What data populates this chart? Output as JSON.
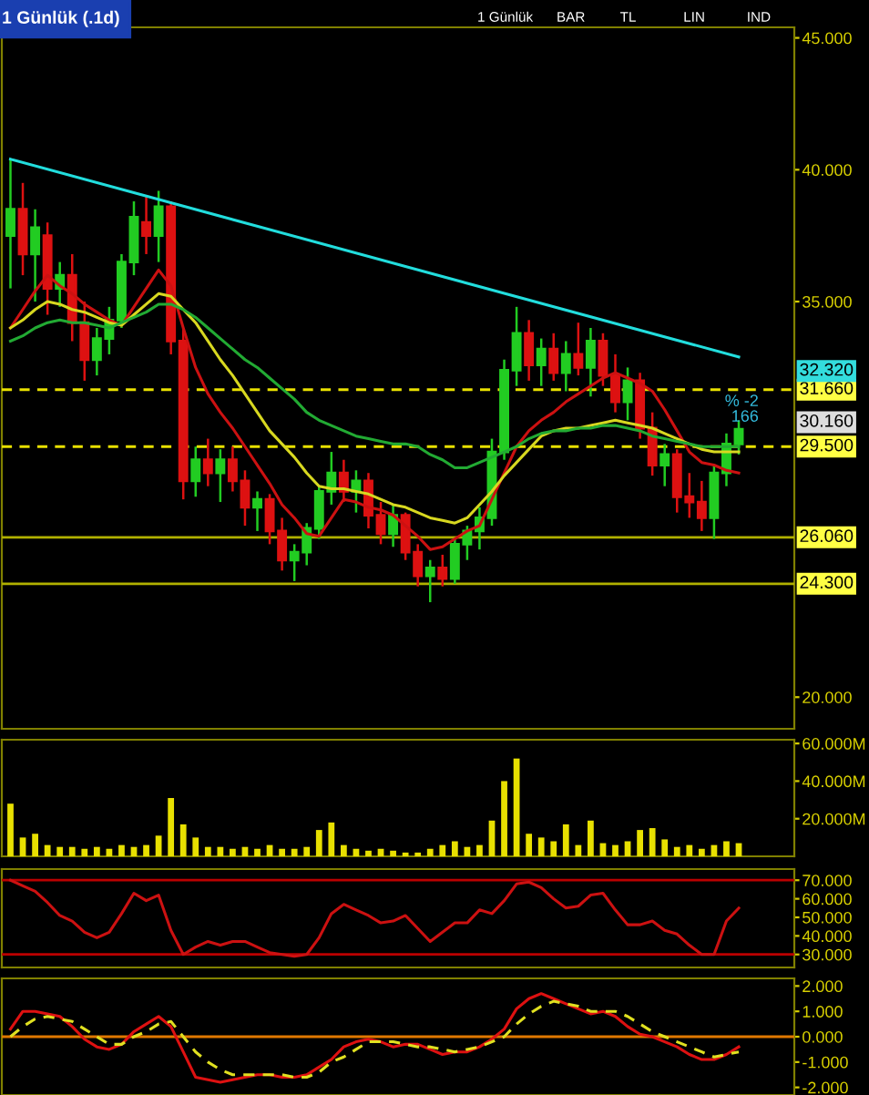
{
  "chart_data": [
    {
      "type": "candlestick",
      "title": "1 Günlük (.1d)",
      "annotations": [
        "1 Günlük",
        "BAR",
        "TL",
        "LIN",
        "IND",
        "% -2",
        "166",
        "32.320",
        "30.160"
      ],
      "categories": [
        null,
        null,
        null,
        null,
        null,
        null,
        null,
        null,
        null,
        null,
        null,
        null,
        null,
        null,
        null,
        null,
        null,
        null,
        null,
        null,
        null,
        null,
        null,
        null,
        null,
        null,
        null,
        null,
        null,
        null,
        null,
        null,
        null,
        null,
        null,
        null,
        null,
        null,
        null,
        null,
        null,
        null,
        null,
        null,
        null,
        null,
        null,
        null,
        null,
        null,
        null,
        null,
        null,
        null,
        null,
        null,
        null,
        null,
        null,
        null
      ],
      "ohlc": [
        [
          37.5,
          40.4,
          35.5,
          38.5
        ],
        [
          38.5,
          39.5,
          36,
          36.8
        ],
        [
          36.8,
          38.5,
          35,
          37.8
        ],
        [
          37.5,
          38,
          34.5,
          35.5
        ],
        [
          35.5,
          36.5,
          34.8,
          36
        ],
        [
          36,
          36.8,
          33.5,
          34.2
        ],
        [
          34.2,
          35,
          32,
          32.8
        ],
        [
          32.8,
          34,
          32.2,
          33.6
        ],
        [
          33.6,
          34.8,
          33,
          34.3
        ],
        [
          34.3,
          36.8,
          34,
          36.5
        ],
        [
          36.5,
          38.8,
          36,
          38.2
        ],
        [
          38,
          39,
          36.8,
          37.5
        ],
        [
          37.5,
          39.2,
          36.5,
          38.6
        ],
        [
          38.6,
          38.8,
          33,
          33.5
        ],
        [
          33.5,
          34,
          27.5,
          28.2
        ],
        [
          28.2,
          29.5,
          27.6,
          29
        ],
        [
          29,
          29.8,
          28,
          28.5
        ],
        [
          28.5,
          29.4,
          27.4,
          29
        ],
        [
          29,
          29.5,
          27.8,
          28.2
        ],
        [
          28.2,
          28.6,
          26.5,
          27.2
        ],
        [
          27.2,
          27.8,
          26.3,
          27.5
        ],
        [
          27.5,
          27.7,
          25.8,
          26.3
        ],
        [
          26.3,
          26.8,
          24.8,
          25.2
        ],
        [
          25.2,
          25.8,
          24.4,
          25.5
        ],
        [
          25.5,
          26.6,
          25,
          26.4
        ],
        [
          26.4,
          28,
          26,
          27.8
        ],
        [
          27.8,
          29.3,
          27.3,
          28.5
        ],
        [
          28.5,
          29,
          27.4,
          27.8
        ],
        [
          27.8,
          28.6,
          27,
          28.2
        ],
        [
          28.2,
          28.5,
          26.4,
          26.9
        ],
        [
          26.9,
          27.4,
          25.8,
          26.2
        ],
        [
          26.2,
          27.3,
          25.7,
          26.9
        ],
        [
          26.9,
          27,
          25.2,
          25.5
        ],
        [
          25.5,
          25.8,
          24.2,
          24.6
        ],
        [
          24.6,
          25.2,
          23.6,
          24.9
        ],
        [
          24.9,
          25.4,
          24.2,
          24.5
        ],
        [
          24.5,
          26,
          24.3,
          25.8
        ],
        [
          25.8,
          26.5,
          25.2,
          26.3
        ],
        [
          26.3,
          27.2,
          25.6,
          26.8
        ],
        [
          26.8,
          29.8,
          26.5,
          29.3
        ],
        [
          29.3,
          32.8,
          29,
          32.4
        ],
        [
          32.4,
          34.8,
          31.8,
          33.8
        ],
        [
          33.8,
          34.3,
          32,
          32.6
        ],
        [
          32.6,
          33.6,
          31.8,
          33.2
        ],
        [
          33.2,
          33.8,
          32,
          32.3
        ],
        [
          32.3,
          33.5,
          31.6,
          33
        ],
        [
          33,
          34.2,
          32.2,
          32.5
        ],
        [
          32.5,
          34,
          31.4,
          33.5
        ],
        [
          33.5,
          33.8,
          31.8,
          32.2
        ],
        [
          32.2,
          33,
          30.8,
          31.2
        ],
        [
          31.2,
          32.5,
          30.5,
          32
        ],
        [
          32,
          32.3,
          29.8,
          30.2
        ],
        [
          30.2,
          30.8,
          28.4,
          28.8
        ],
        [
          28.8,
          29.6,
          28,
          29.2
        ],
        [
          29.2,
          29.4,
          27,
          27.6
        ],
        [
          27.6,
          28.5,
          26.8,
          27.4
        ],
        [
          27.4,
          28.2,
          26.3,
          26.8
        ],
        [
          26.8,
          28.8,
          26,
          28.5
        ],
        [
          28.5,
          30,
          28,
          29.6
        ],
        [
          29.6,
          30.5,
          29.2,
          30.16
        ]
      ],
      "colors": [
        "#22cc22",
        "#dd1111",
        "#22cc22",
        "#dd1111",
        "#22cc22",
        "#dd1111",
        "#dd1111",
        "#22cc22",
        "#22cc22",
        "#22cc22",
        "#22cc22",
        "#dd1111",
        "#22cc22",
        "#dd1111",
        "#dd1111",
        "#22cc22",
        "#dd1111",
        "#22cc22",
        "#dd1111",
        "#dd1111",
        "#22cc22",
        "#dd1111",
        "#dd1111",
        "#22cc22",
        "#22cc22",
        "#22cc22",
        "#22cc22",
        "#dd1111",
        "#22cc22",
        "#dd1111",
        "#dd1111",
        "#22cc22",
        "#dd1111",
        "#dd1111",
        "#22cc22",
        "#dd1111",
        "#22cc22",
        "#22cc22",
        "#22cc22",
        "#22cc22",
        "#22cc22",
        "#22cc22",
        "#dd1111",
        "#22cc22",
        "#dd1111",
        "#22cc22",
        "#dd1111",
        "#22cc22",
        "#dd1111",
        "#dd1111",
        "#22cc22",
        "#dd1111",
        "#dd1111",
        "#22cc22",
        "#dd1111",
        "#dd1111",
        "#dd1111",
        "#22cc22",
        "#22cc22",
        "#22cc22"
      ],
      "series": [
        {
          "type": "line",
          "color": "#cc1111",
          "values": [
            34,
            34.7,
            35.4,
            36,
            35.6,
            35.3,
            34.9,
            34.6,
            34.3,
            34.1,
            34.8,
            35.5,
            36.2,
            35.6,
            34,
            32.5,
            31.5,
            30.8,
            30.2,
            29.5,
            28.8,
            28.1,
            27.3,
            26.8,
            26.2,
            26.1,
            26.8,
            27.5,
            27.4,
            27.2,
            27.1,
            26.9,
            26.5,
            26.1,
            25.6,
            25.7,
            26,
            26.3,
            26.5,
            27.5,
            28.5,
            29.5,
            30.1,
            30.5,
            30.8,
            31.2,
            31.5,
            31.8,
            32.1,
            32.3,
            32.1,
            31.9,
            31.6,
            30.9,
            30.1,
            29.3,
            28.9,
            28.8,
            28.6,
            28.5
          ]
        },
        {
          "type": "line",
          "color": "#d8d820",
          "values": [
            34,
            34.3,
            34.7,
            35,
            34.9,
            34.7,
            34.6,
            34.4,
            34.2,
            34.1,
            34.5,
            34.9,
            35.3,
            35.2,
            34.7,
            34.2,
            33.5,
            32.8,
            32.2,
            31.5,
            30.8,
            30.1,
            29.6,
            29.1,
            28.5,
            28,
            27.9,
            27.9,
            27.8,
            27.7,
            27.5,
            27.3,
            27.2,
            27,
            26.8,
            26.7,
            26.6,
            26.8,
            27.3,
            27.8,
            28.4,
            28.9,
            29.4,
            29.9,
            30.1,
            30.2,
            30.2,
            30.3,
            30.4,
            30.5,
            30.4,
            30.3,
            30.2,
            30,
            29.8,
            29.6,
            29.4,
            29.3,
            29.3,
            29.3
          ]
        },
        {
          "type": "line",
          "color": "#22aa33",
          "values": [
            33.5,
            33.7,
            34,
            34.2,
            34.3,
            34.2,
            34.2,
            34.1,
            34,
            34.2,
            34.4,
            34.6,
            34.9,
            34.9,
            34.7,
            34.4,
            34,
            33.6,
            33.2,
            32.8,
            32.5,
            32.1,
            31.7,
            31.3,
            30.8,
            30.5,
            30.3,
            30.1,
            29.9,
            29.8,
            29.7,
            29.6,
            29.6,
            29.5,
            29.2,
            29,
            28.7,
            28.7,
            28.9,
            29.1,
            29.3,
            29.5,
            29.8,
            30,
            30.1,
            30.1,
            30.2,
            30.2,
            30.3,
            30.3,
            30.2,
            30.1,
            29.9,
            29.8,
            29.7,
            29.6,
            29.5,
            29.5,
            29.5,
            29.5
          ]
        },
        {
          "type": "line",
          "color": "#22dddd",
          "values": [
            40.4,
            null,
            null,
            null,
            null,
            null,
            null,
            null,
            null,
            null,
            null,
            null,
            null,
            null,
            null,
            null,
            null,
            null,
            null,
            null,
            null,
            null,
            null,
            null,
            null,
            null,
            null,
            null,
            null,
            null,
            null,
            null,
            null,
            null,
            null,
            null,
            null,
            null,
            null,
            null,
            null,
            null,
            null,
            null,
            null,
            null,
            null,
            null,
            null,
            null,
            null,
            null,
            null,
            null,
            null,
            null,
            null,
            null,
            null,
            32.9
          ]
        }
      ],
      "ref_lines": [
        {
          "axis": "y",
          "value": 31.66,
          "label": "31.660",
          "color": "#e8e000",
          "line_style": "dashed"
        },
        {
          "axis": "y",
          "value": 29.5,
          "label": "29.500",
          "color": "#e8e000",
          "line_style": "dashed"
        },
        {
          "axis": "y",
          "value": 26.06,
          "label": "26.060",
          "color": "#b0b000",
          "line_style": "solid"
        },
        {
          "axis": "y",
          "value": 24.3,
          "label": "24.300",
          "color": "#b0b000",
          "line_style": "solid"
        }
      ],
      "ylim": [
        18.8,
        45.4
      ],
      "yticks": [
        {
          "value": 20,
          "label": "20.000"
        },
        {
          "value": 35,
          "label": "35.000"
        },
        {
          "value": 40,
          "label": "40.000"
        },
        {
          "value": 45,
          "label": "45.000"
        }
      ],
      "tick_labels": "y",
      "grid": false,
      "legend": false
    },
    {
      "type": "bar",
      "categories": [
        null,
        null,
        null,
        null,
        null,
        null,
        null,
        null,
        null,
        null,
        null,
        null,
        null,
        null,
        null,
        null,
        null,
        null,
        null,
        null,
        null,
        null,
        null,
        null,
        null,
        null,
        null,
        null,
        null,
        null,
        null,
        null,
        null,
        null,
        null,
        null,
        null,
        null,
        null,
        null,
        null,
        null,
        null,
        null,
        null,
        null,
        null,
        null,
        null,
        null,
        null,
        null,
        null,
        null,
        null,
        null,
        null,
        null,
        null,
        null
      ],
      "series": [
        {
          "color": "#e8e000",
          "values": [
            28,
            10,
            12,
            6,
            5,
            5,
            4,
            5,
            4,
            6,
            5,
            6,
            11,
            31,
            17,
            10,
            5,
            5,
            4,
            5,
            4,
            6,
            4,
            4,
            5,
            14,
            18,
            6,
            4,
            3,
            4,
            3,
            2,
            2,
            4,
            6,
            8,
            5,
            6,
            19,
            40,
            52,
            12,
            10,
            8,
            17,
            6,
            19,
            7,
            6,
            8,
            14,
            15,
            9,
            5,
            6,
            4,
            6,
            8,
            7
          ]
        }
      ],
      "ylim": [
        0,
        62
      ],
      "yticks": [
        {
          "value": 20,
          "label": "20.000M"
        },
        {
          "value": 40,
          "label": "40.000M"
        },
        {
          "value": 60,
          "label": "60.000M"
        }
      ],
      "tick_labels": "y",
      "grid": false,
      "legend": false
    },
    {
      "type": "line",
      "categories": [
        null,
        null,
        null,
        null,
        null,
        null,
        null,
        null,
        null,
        null,
        null,
        null,
        null,
        null,
        null,
        null,
        null,
        null,
        null,
        null,
        null,
        null,
        null,
        null,
        null,
        null,
        null,
        null,
        null,
        null,
        null,
        null,
        null,
        null,
        null,
        null,
        null,
        null,
        null,
        null,
        null,
        null,
        null,
        null,
        null,
        null,
        null,
        null,
        null,
        null,
        null,
        null,
        null,
        null,
        null,
        null,
        null,
        null,
        null,
        null
      ],
      "series": [
        {
          "color": "#cc1111",
          "values": [
            70,
            67,
            64,
            58,
            51,
            48,
            42,
            39,
            42,
            52,
            63,
            59,
            62,
            43,
            30,
            34,
            37,
            35,
            37,
            37,
            34,
            31,
            30,
            29,
            30,
            39,
            52,
            57,
            54,
            51,
            47,
            48,
            51,
            44,
            37,
            42,
            47,
            47,
            54,
            52,
            59,
            68,
            69,
            66,
            60,
            55,
            56,
            62,
            63,
            54,
            46,
            46,
            48,
            43,
            41,
            35,
            30,
            30,
            48,
            55
          ]
        }
      ],
      "ref_lines": [
        {
          "axis": "y",
          "value": 70,
          "color": "#bb0000",
          "line_style": "solid"
        },
        {
          "axis": "y",
          "value": 30,
          "color": "#bb0000",
          "line_style": "solid"
        }
      ],
      "ylim": [
        23,
        76
      ],
      "yticks": [
        {
          "value": 30,
          "label": "30.000"
        },
        {
          "value": 40,
          "label": "40.000"
        },
        {
          "value": 50,
          "label": "50.000"
        },
        {
          "value": 60,
          "label": "60.000"
        },
        {
          "value": 70,
          "label": "70.000"
        }
      ],
      "tick_labels": "y",
      "grid": false,
      "legend": false
    },
    {
      "type": "line",
      "categories": [
        null,
        null,
        null,
        null,
        null,
        null,
        null,
        null,
        null,
        null,
        null,
        null,
        null,
        null,
        null,
        null,
        null,
        null,
        null,
        null,
        null,
        null,
        null,
        null,
        null,
        null,
        null,
        null,
        null,
        null,
        null,
        null,
        null,
        null,
        null,
        null,
        null,
        null,
        null,
        null,
        null,
        null,
        null,
        null,
        null,
        null,
        null,
        null,
        null,
        null,
        null,
        null,
        null,
        null,
        null,
        null,
        null,
        null,
        null,
        null
      ],
      "series": [
        {
          "color": "#dd1111",
          "line_style": "solid",
          "values": [
            0.3,
            1.0,
            1.0,
            0.9,
            0.8,
            0.4,
            -0.1,
            -0.4,
            -0.5,
            -0.3,
            0.2,
            0.5,
            0.8,
            0.4,
            -0.6,
            -1.6,
            -1.7,
            -1.8,
            -1.7,
            -1.6,
            -1.5,
            -1.5,
            -1.6,
            -1.6,
            -1.5,
            -1.2,
            -0.9,
            -0.4,
            -0.2,
            -0.1,
            -0.2,
            -0.4,
            -0.3,
            -0.3,
            -0.5,
            -0.7,
            -0.6,
            -0.6,
            -0.4,
            -0.1,
            0.3,
            1.1,
            1.5,
            1.7,
            1.5,
            1.3,
            1.1,
            0.9,
            1.0,
            0.8,
            0.4,
            0.1,
            0.0,
            -0.2,
            -0.4,
            -0.7,
            -0.9,
            -0.9,
            -0.7,
            -0.4
          ]
        },
        {
          "color": "#e0e020",
          "line_style": "dashed",
          "values": [
            0.0,
            0.4,
            0.7,
            0.8,
            0.7,
            0.6,
            0.3,
            0.0,
            -0.3,
            -0.3,
            0.0,
            0.2,
            0.5,
            0.6,
            0.0,
            -0.6,
            -1.0,
            -1.3,
            -1.5,
            -1.5,
            -1.5,
            -1.5,
            -1.5,
            -1.6,
            -1.6,
            -1.4,
            -1.0,
            -0.8,
            -0.5,
            -0.2,
            -0.2,
            -0.2,
            -0.3,
            -0.4,
            -0.4,
            -0.5,
            -0.6,
            -0.5,
            -0.4,
            -0.2,
            0.0,
            0.5,
            0.9,
            1.2,
            1.4,
            1.3,
            1.2,
            1.0,
            1.0,
            1.0,
            0.8,
            0.5,
            0.2,
            0.0,
            -0.2,
            -0.4,
            -0.6,
            -0.8,
            -0.7,
            -0.6
          ]
        }
      ],
      "ref_lines": [
        {
          "axis": "y",
          "value": 0,
          "color": "#e07800",
          "line_style": "solid"
        }
      ],
      "ylim": [
        -2.3,
        2.3
      ],
      "yticks": [
        {
          "value": -2,
          "label": "-2.000"
        },
        {
          "value": -1,
          "label": "-1.000"
        },
        {
          "value": 0,
          "label": "0.000"
        },
        {
          "value": 1,
          "label": "1.000"
        },
        {
          "value": 2,
          "label": "2.000"
        }
      ],
      "tick_labels": "y",
      "grid": false,
      "legend": false
    }
  ]
}
